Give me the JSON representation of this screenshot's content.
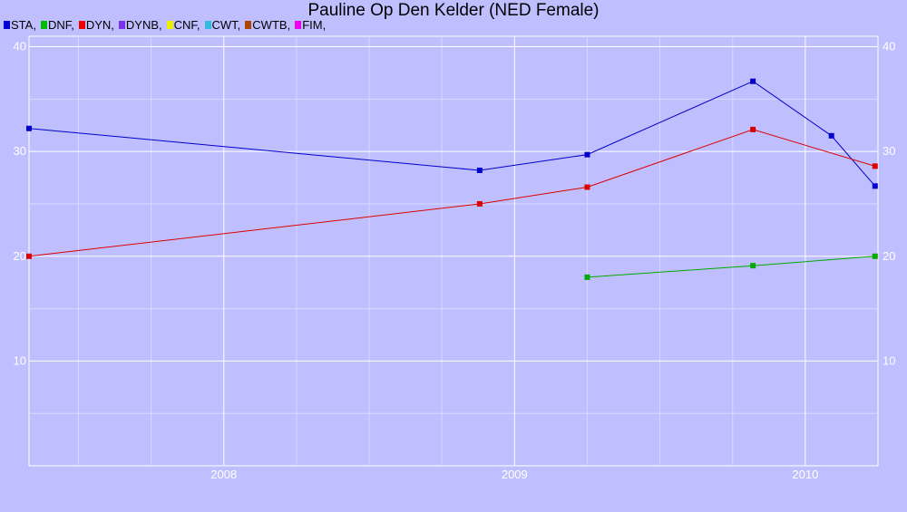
{
  "chart_data": {
    "type": "line",
    "title": "Pauline Op Den Kelder (NED Female)",
    "xlabel": "",
    "ylabel": "",
    "xlim": [
      2007.33,
      2010.25
    ],
    "ylim": [
      0,
      41
    ],
    "x_ticks": [
      2008,
      2009,
      2010
    ],
    "x_tick_labels": [
      "2008",
      "2009",
      "2010"
    ],
    "y_ticks": [
      10,
      20,
      30,
      40
    ],
    "y_tick_labels": [
      "10",
      "20",
      "30",
      "40"
    ],
    "grid": true,
    "legend_position": "top-left",
    "legend": [
      {
        "label": "STA,",
        "color": "#0000dd"
      },
      {
        "label": "DNF,",
        "color": "#00bb00"
      },
      {
        "label": "DYN,",
        "color": "#ee0000"
      },
      {
        "label": "DYNB,",
        "color": "#7733ee"
      },
      {
        "label": "CNF,",
        "color": "#eeee00"
      },
      {
        "label": "CWT,",
        "color": "#33bbdd"
      },
      {
        "label": "CWTB,",
        "color": "#aa4400"
      },
      {
        "label": "FIM,",
        "color": "#ee00ee"
      }
    ],
    "series": [
      {
        "name": "STA",
        "color": "#0000cc",
        "points": [
          [
            2007.33,
            32.2
          ],
          [
            2008.88,
            28.2
          ],
          [
            2009.25,
            29.7
          ],
          [
            2009.82,
            36.7
          ],
          [
            2010.09,
            31.5
          ],
          [
            2010.24,
            26.7
          ]
        ]
      },
      {
        "name": "DNF",
        "color": "#00aa00",
        "points": [
          [
            2009.25,
            18.0
          ],
          [
            2009.82,
            19.1
          ],
          [
            2010.24,
            20.0
          ]
        ]
      },
      {
        "name": "DYN",
        "color": "#dd0000",
        "points": [
          [
            2007.33,
            20.0
          ],
          [
            2008.88,
            25.0
          ],
          [
            2009.25,
            26.6
          ],
          [
            2009.82,
            32.1
          ],
          [
            2010.24,
            28.6
          ]
        ]
      }
    ]
  }
}
